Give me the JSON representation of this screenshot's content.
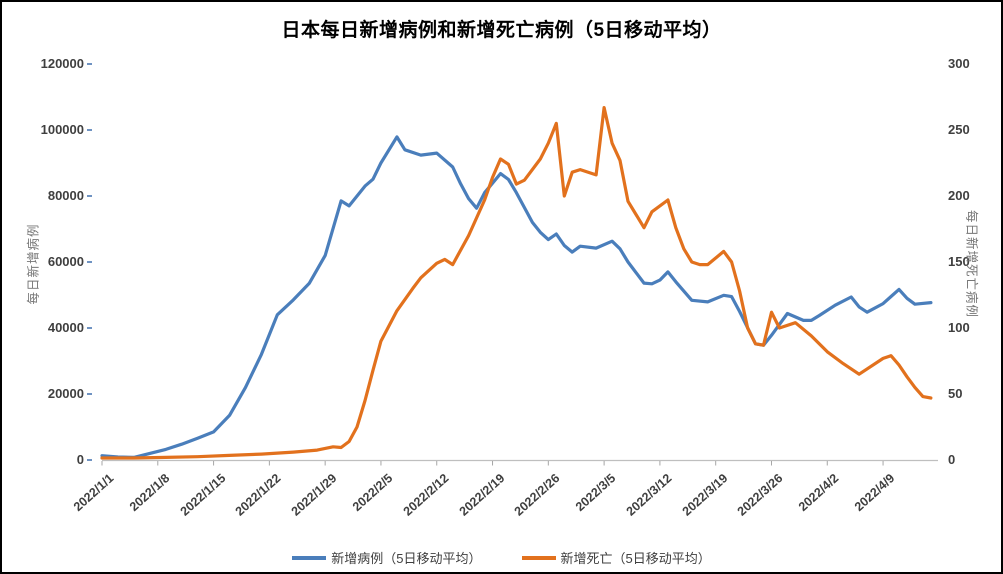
{
  "title": "日本每日新增病例和新增死亡病例（5日移动平均）",
  "colors": {
    "cases_line": "#4A7EBB",
    "deaths_line": "#E2711D",
    "axis_line": "#BFBFBF",
    "x_tick_mark": "#A6A6A6",
    "left_tick_mark": "#6F93C2",
    "tick_label_text": "#3F3F3F",
    "axis_title_text": "#767676",
    "title_text": "#000000"
  },
  "chart_data": {
    "type": "line",
    "title": "日本每日新增病例和新增死亡病例（5日移动平均）",
    "x_start_date": "2022/1/1",
    "x_tick_labels": [
      "2022/1/1",
      "2022/1/8",
      "2022/1/15",
      "2022/1/22",
      "2022/1/29",
      "2022/2/5",
      "2022/2/12",
      "2022/2/19",
      "2022/2/26",
      "2022/3/5",
      "2022/3/12",
      "2022/3/19",
      "2022/3/26",
      "2022/4/2",
      "2022/4/9"
    ],
    "days_per_tick": 7,
    "grid": "off",
    "legend_position": "bottom",
    "left_axis": {
      "title": "每日新增病例",
      "min": 0,
      "max": 120000,
      "step": 20000,
      "tick_labels": [
        "0",
        "20000",
        "40000",
        "60000",
        "80000",
        "100000",
        "120000"
      ]
    },
    "right_axis": {
      "title": "每日新增死亡病例",
      "min": 0,
      "max": 300,
      "step": 50,
      "tick_labels": [
        "0",
        "50",
        "100",
        "150",
        "200",
        "250",
        "300"
      ]
    },
    "series": [
      {
        "name": "新增病例（5日移动平均）",
        "axis": "left",
        "color": "#4A7EBB",
        "days": [
          0,
          2,
          4,
          6,
          8,
          10,
          12,
          14,
          16,
          18,
          20,
          22,
          24,
          26,
          28,
          30,
          31,
          33,
          34,
          35,
          37,
          38,
          40,
          42,
          44,
          45,
          46,
          47,
          48,
          50,
          51,
          52,
          54,
          55,
          56,
          57,
          58,
          59,
          60,
          62,
          64,
          65,
          66,
          68,
          69,
          70,
          71,
          72,
          74,
          76,
          78,
          79,
          80,
          82,
          83,
          84,
          86,
          88,
          89,
          90,
          92,
          94,
          95,
          96,
          98,
          100,
          101,
          102,
          104
        ],
        "values": [
          1300,
          900,
          800,
          2000,
          3200,
          4800,
          6600,
          8500,
          13500,
          22000,
          32000,
          44000,
          48500,
          53500,
          62000,
          78500,
          77000,
          83000,
          85100,
          90000,
          97900,
          94000,
          92400,
          93000,
          88800,
          83700,
          79200,
          76300,
          81000,
          86800,
          85000,
          81000,
          72000,
          69000,
          66800,
          68500,
          65000,
          63000,
          64800,
          64200,
          66300,
          64000,
          60000,
          53600,
          53400,
          54500,
          57000,
          54000,
          48400,
          47900,
          49900,
          49500,
          45000,
          35200,
          34800,
          37800,
          44400,
          42300,
          42300,
          43800,
          46900,
          49400,
          46400,
          44800,
          47400,
          51700,
          49000,
          47200,
          47700
        ]
      },
      {
        "name": "新增死亡（5日移动平均）",
        "axis": "right",
        "color": "#E2711D",
        "days": [
          0,
          4,
          8,
          12,
          16,
          20,
          24,
          27,
          29,
          30,
          31,
          32,
          33,
          34,
          35,
          37,
          39,
          40,
          42,
          43,
          44,
          46,
          48,
          49,
          50,
          51,
          52,
          53,
          55,
          56,
          57,
          58,
          59,
          60,
          62,
          63,
          64,
          65,
          66,
          67,
          68,
          69,
          71,
          72,
          73,
          74,
          75,
          76,
          78,
          79,
          80,
          81,
          82,
          83,
          84,
          85,
          87,
          89,
          91,
          93,
          95,
          96,
          98,
          99,
          100,
          101,
          102,
          103,
          104
        ],
        "values": [
          1.5,
          1.5,
          2,
          2.5,
          3.5,
          4.5,
          6,
          7.5,
          10,
          9.5,
          14,
          25,
          45,
          68,
          90,
          113,
          130,
          138,
          149,
          152,
          148,
          170,
          197,
          214,
          228,
          224,
          209,
          212,
          228,
          240,
          255,
          200,
          218,
          220,
          216,
          267,
          240,
          227,
          196,
          186,
          176,
          188,
          197,
          176,
          160,
          150,
          148,
          148,
          158,
          150,
          128,
          100,
          88,
          87,
          112,
          100,
          104,
          94,
          82,
          73,
          65,
          69,
          77,
          79,
          72,
          63,
          55,
          48,
          47
        ]
      }
    ]
  }
}
